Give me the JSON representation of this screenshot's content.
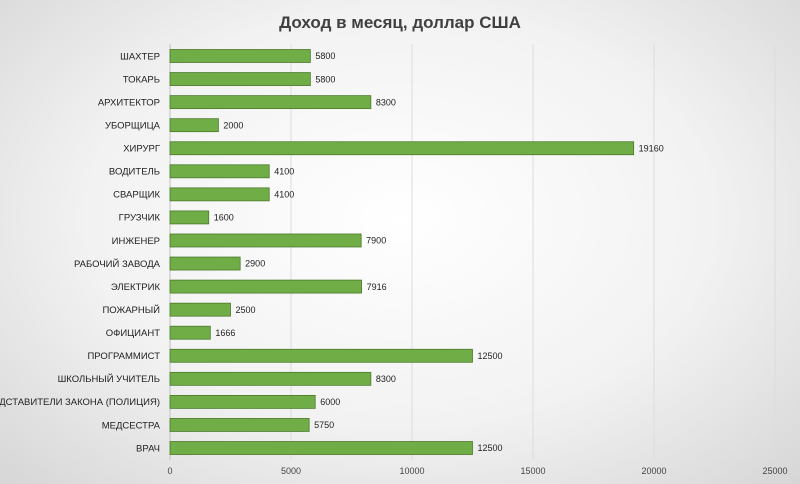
{
  "chart_data": {
    "type": "bar",
    "orientation": "horizontal",
    "title": "Доход в месяц, доллар США",
    "xlabel": "",
    "ylabel": "",
    "xlim": [
      0,
      25000
    ],
    "ticks": [
      "0",
      "5000",
      "10000",
      "15000",
      "20000",
      "25000"
    ],
    "tick_values": [
      0,
      5000,
      10000,
      15000,
      20000,
      25000
    ],
    "grid": true,
    "bar_color": "#70ad47",
    "categories": [
      "ШАХТЕР",
      "ТОКАРЬ",
      "АРХИТЕКТОР",
      "УБОРЩИЦА",
      "ХИРУРГ",
      "ВОДИТЕЛЬ",
      "СВАРЩИК",
      "ГРУЗЧИК",
      "ИНЖЕНЕР",
      "РАБОЧИЙ ЗАВОДА",
      "ЭЛЕКТРИК",
      "ПОЖАРНЫЙ",
      "ОФИЦИАНТ",
      "ПРОГРАММИСТ",
      "ШКОЛЬНЫЙ УЧИТЕЛЬ",
      "ПРЕДСТАВИТЕЛИ ЗАКОНА (ПОЛИЦИЯ)",
      "МЕДСЕСТРА",
      "ВРАЧ"
    ],
    "values": [
      5800,
      5800,
      8300,
      2000,
      19160,
      4100,
      4100,
      1600,
      7900,
      2900,
      7916,
      2500,
      1666,
      12500,
      8300,
      6000,
      5750,
      12500
    ]
  }
}
